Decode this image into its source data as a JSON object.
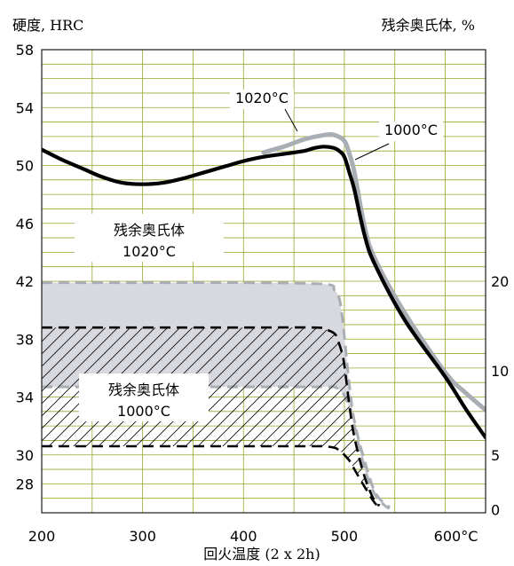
{
  "chart_data": {
    "type": "line",
    "ylabel": "硬度, HRC",
    "ylabel_right": "残余奥氏体, %",
    "xlabel": "回火温度 (2 x 2h)",
    "xlim": [
      200,
      640
    ],
    "ylim": [
      26,
      58
    ],
    "x_ticks": [
      {
        "value": 200,
        "label": "200"
      },
      {
        "value": 300,
        "label": "300"
      },
      {
        "value": 400,
        "label": "400"
      },
      {
        "value": 500,
        "label": "500"
      },
      {
        "value": 600,
        "label": "600°C"
      }
    ],
    "y_ticks": [
      {
        "value": 58,
        "label": "58"
      },
      {
        "value": 54,
        "label": "54"
      },
      {
        "value": 50,
        "label": "50"
      },
      {
        "value": 46,
        "label": "46"
      },
      {
        "value": 42,
        "label": "42"
      },
      {
        "value": 38,
        "label": "38"
      },
      {
        "value": 34,
        "label": "34"
      },
      {
        "value": 30,
        "label": "30"
      },
      {
        "value": 28,
        "label": "28"
      }
    ],
    "y_right_ticks": [
      {
        "hrc": 42,
        "label": "20"
      },
      {
        "hrc": 35.8,
        "label": "10"
      },
      {
        "hrc": 30,
        "label": "5"
      },
      {
        "hrc": 26.2,
        "label": "0"
      }
    ],
    "grid": true,
    "series": [
      {
        "name": "1020°C",
        "x": [
          420,
          440,
          460,
          480,
          490,
          500,
          505,
          510,
          520,
          530,
          560,
          600,
          620,
          640
        ],
        "y": [
          50.9,
          51.3,
          51.8,
          52.1,
          52.1,
          51.7,
          50.8,
          49.5,
          45.8,
          43.6,
          39.8,
          35.7,
          34.3,
          33.1
        ]
      },
      {
        "name": "1000°C",
        "x": [
          200,
          220,
          240,
          260,
          280,
          300,
          320,
          340,
          360,
          380,
          400,
          420,
          440,
          460,
          470,
          480,
          490,
          495,
          500,
          505,
          510,
          520,
          530,
          560,
          600,
          620,
          640
        ],
        "y": [
          51.1,
          50.4,
          49.8,
          49.2,
          48.8,
          48.7,
          48.8,
          49.1,
          49.5,
          49.9,
          50.3,
          50.6,
          50.8,
          51.0,
          51.2,
          51.3,
          51.2,
          51.0,
          50.6,
          49.5,
          48.3,
          45.2,
          43.2,
          39.3,
          35.4,
          33.2,
          31.2
        ]
      }
    ],
    "bands": [
      {
        "name": "残余奥氏体 1020°C",
        "x": [
          200,
          300,
          400,
          480,
          490,
          495,
          498,
          500,
          505,
          510,
          520,
          530,
          540,
          545
        ],
        "upper": [
          41.9,
          41.9,
          41.9,
          41.8,
          41.4,
          40.8,
          39.5,
          38.2,
          34.8,
          32.3,
          29.6,
          27.5,
          26.6,
          26.4
        ],
        "lower": [
          34.7,
          34.7,
          34.7,
          34.7,
          34.7,
          34.5,
          34.3,
          34.1,
          33.3,
          32.0,
          29.0,
          27.3,
          26.5,
          26.3
        ]
      },
      {
        "name": "残余奥氏体 1000°C",
        "x": [
          200,
          300,
          400,
          470,
          480,
          490,
          493,
          497,
          500,
          505,
          510,
          520,
          530,
          535
        ],
        "upper": [
          38.8,
          38.8,
          38.8,
          38.8,
          38.7,
          38.4,
          38.0,
          37.2,
          36.2,
          33.4,
          31.2,
          28.5,
          26.8,
          26.5
        ],
        "lower": [
          30.6,
          30.6,
          30.6,
          30.6,
          30.6,
          30.5,
          30.4,
          30.2,
          30.0,
          29.6,
          29.0,
          27.8,
          26.7,
          26.4
        ]
      }
    ],
    "annotations": [
      {
        "id": "ann-1020-line",
        "lines": [
          "1020°C"
        ]
      },
      {
        "id": "ann-1000-line",
        "lines": [
          "1000°C"
        ]
      },
      {
        "id": "ann-1020-band",
        "lines": [
          "残余奥氏体",
          "1020°C"
        ]
      },
      {
        "id": "ann-1000-band",
        "lines": [
          "残余奥氏体",
          "1000°C"
        ]
      }
    ],
    "colors": {
      "grid": "#9aa52c",
      "frame": "#1a1a1a",
      "line_1000": "#000000",
      "line_1020": "#a9adb4",
      "band_fill": "#d7d9df",
      "band_1020_edge": "#a9adb4",
      "band_1000_edge": "#000000"
    }
  }
}
